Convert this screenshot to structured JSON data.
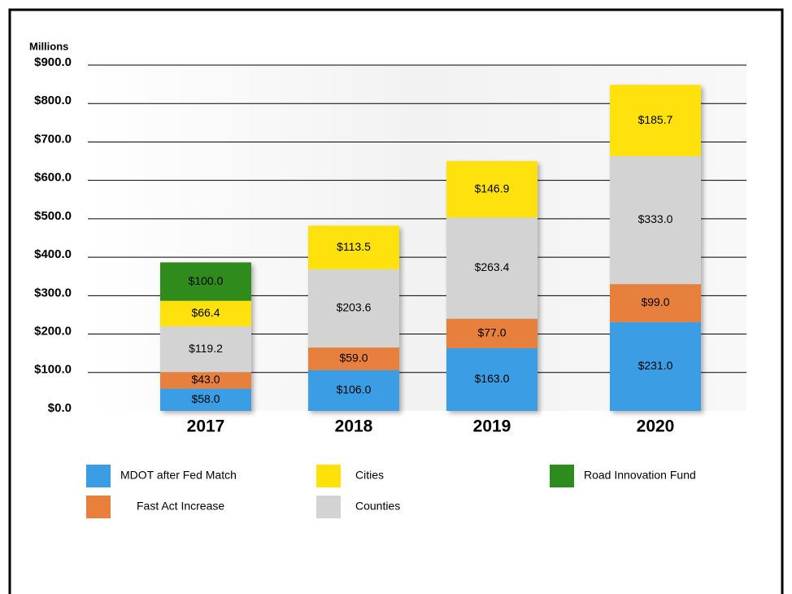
{
  "chart_data": {
    "type": "stacked_bar",
    "y_axis_label": "Millions",
    "categories": [
      "2017",
      "2018",
      "2019",
      "2020"
    ],
    "series": [
      {
        "name": "MDOT after Fed Match",
        "color": "#3a9de3",
        "values": [
          58.0,
          106.0,
          163.0,
          231.0
        ],
        "value_labels": [
          "$58.0",
          "$106.0",
          "$163.0",
          "$231.0"
        ]
      },
      {
        "name": "Fast Act Increase",
        "color": "#e8803c",
        "values": [
          43.0,
          59.0,
          77.0,
          99.0
        ],
        "value_labels": [
          "$43.0",
          "$59.0",
          "$77.0",
          "$99.0"
        ]
      },
      {
        "name": "Counties",
        "color": "#d3d3d3",
        "values": [
          119.2,
          203.6,
          263.4,
          333.0
        ],
        "value_labels": [
          "$119.2",
          "$203.6",
          "$263.4",
          "$333.0"
        ]
      },
      {
        "name": "Cities",
        "color": "#ffe10a",
        "values": [
          66.4,
          113.5,
          146.9,
          185.7
        ],
        "value_labels": [
          "$66.4",
          "$113.5",
          "$146.9",
          "$185.7"
        ]
      },
      {
        "name": "Road Innovation Fund",
        "color": "#2e8b1e",
        "values": [
          100.0,
          null,
          null,
          null
        ],
        "value_labels": [
          "$100.0",
          null,
          null,
          null
        ]
      }
    ],
    "ylim": [
      0,
      900
    ],
    "yticks": [
      {
        "value": 0,
        "label": "$0.0"
      },
      {
        "value": 100,
        "label": "$100.0"
      },
      {
        "value": 200,
        "label": "$200.0"
      },
      {
        "value": 300,
        "label": "$300.0"
      },
      {
        "value": 400,
        "label": "$400.0"
      },
      {
        "value": 500,
        "label": "$500.0"
      },
      {
        "value": 600,
        "label": "$600.0"
      },
      {
        "value": 700,
        "label": "$700.0"
      },
      {
        "value": 800,
        "label": "$800.0"
      },
      {
        "value": 900,
        "label": "$900.0"
      }
    ],
    "grid": true
  }
}
